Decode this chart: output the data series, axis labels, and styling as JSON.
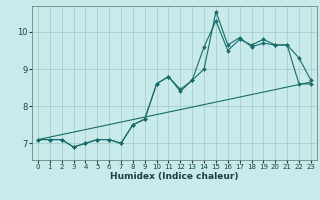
{
  "xlabel": "Humidex (Indice chaleur)",
  "bg_color": "#c8eaea",
  "grid_color": "#a8cece",
  "line_color": "#1a6b6b",
  "xlim": [
    -0.5,
    23.5
  ],
  "ylim": [
    6.55,
    10.7
  ],
  "yticks": [
    7,
    8,
    9,
    10
  ],
  "xticks": [
    0,
    1,
    2,
    3,
    4,
    5,
    6,
    7,
    8,
    9,
    10,
    11,
    12,
    13,
    14,
    15,
    16,
    17,
    18,
    19,
    20,
    21,
    22,
    23
  ],
  "series1_x": [
    0,
    1,
    2,
    3,
    4,
    5,
    6,
    7,
    8,
    9,
    10,
    11,
    12,
    13,
    14,
    15,
    16,
    17,
    18,
    19,
    20,
    21,
    22,
    23
  ],
  "series1_y": [
    7.1,
    7.1,
    7.1,
    6.9,
    7.0,
    7.1,
    7.1,
    7.0,
    7.5,
    7.65,
    8.6,
    8.8,
    8.45,
    8.7,
    9.6,
    10.3,
    9.5,
    9.8,
    9.65,
    9.8,
    9.65,
    9.65,
    8.6,
    8.6
  ],
  "series2_x": [
    0,
    1,
    2,
    3,
    4,
    5,
    6,
    7,
    8,
    9,
    10,
    11,
    12,
    13,
    14,
    15,
    16,
    17,
    18,
    19,
    20,
    21,
    22,
    23
  ],
  "series2_y": [
    7.1,
    7.1,
    7.1,
    6.9,
    7.0,
    7.1,
    7.1,
    7.0,
    7.5,
    7.65,
    8.6,
    8.8,
    8.4,
    8.7,
    9.0,
    10.55,
    9.65,
    9.85,
    9.6,
    9.7,
    9.65,
    9.65,
    9.3,
    8.7
  ],
  "series3_x": [
    0,
    23
  ],
  "series3_y": [
    7.1,
    8.65
  ]
}
